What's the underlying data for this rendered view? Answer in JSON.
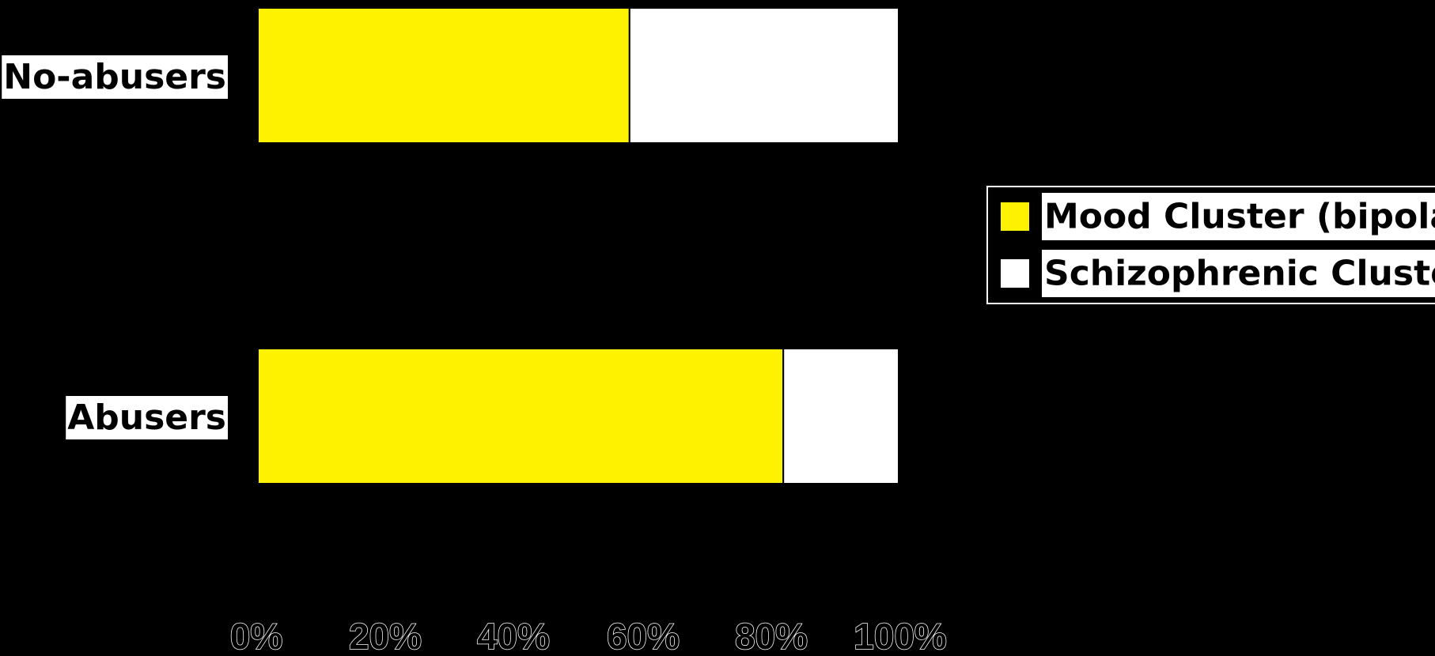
{
  "chart_data": {
    "type": "bar",
    "orientation": "horizontal",
    "stacked": "percent",
    "categories": [
      "No-abusers",
      "Abusers"
    ],
    "series": [
      {
        "name": "Mood Cluster (bipolar",
        "values": [
          58,
          82
        ],
        "color": "#FFF200"
      },
      {
        "name": "Schizophrenic Cluster",
        "values": [
          42,
          18
        ],
        "color": "#FFFFFF"
      }
    ],
    "xlim": [
      0,
      100
    ],
    "x_ticks": [
      "0%",
      "20%",
      "40%",
      "60%",
      "80%",
      "100%"
    ],
    "title": "",
    "xlabel": "",
    "ylabel": "",
    "grid": false,
    "legend_position": "right"
  },
  "colors": {
    "background": "#000000",
    "label_background": "#FFFFFF",
    "text": "#000000"
  }
}
